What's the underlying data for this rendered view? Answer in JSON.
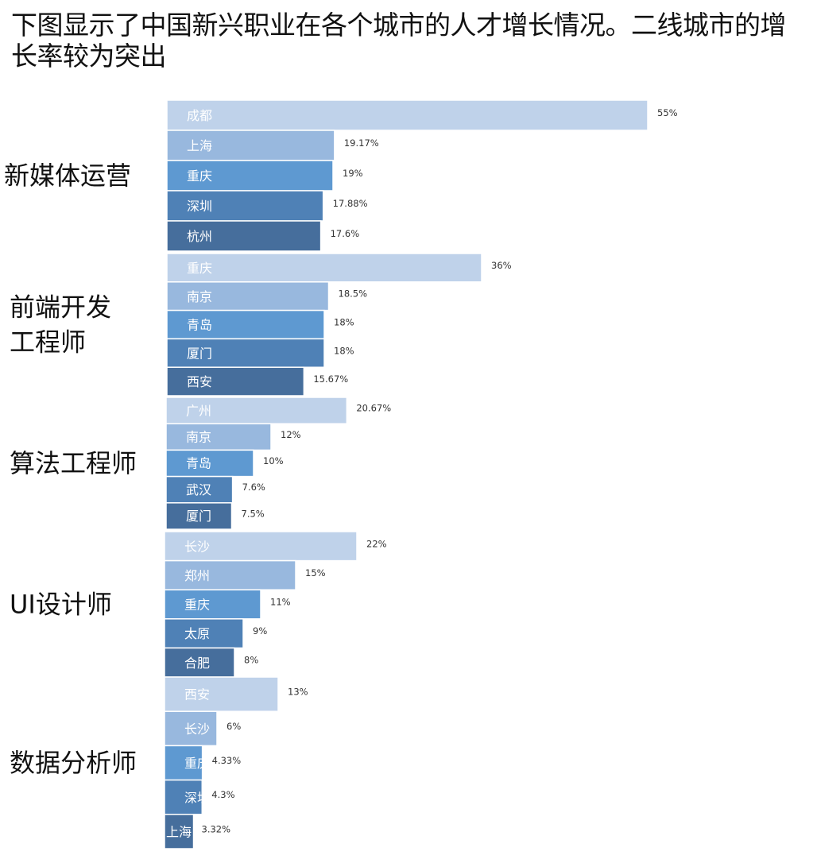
{
  "title": "下图显示了中国新兴职业在各个城市的人才增长情况。二线城市的增长率较为突出",
  "colors": [
    "#bfd2ea",
    "#98b8de",
    "#5e99d1",
    "#4f81b6",
    "#466e9c"
  ],
  "chart_data": {
    "type": "bar",
    "orientation": "horizontal",
    "unit": "%",
    "groups": [
      {
        "name": "新媒体运营",
        "cities": [
          "成都",
          "上海",
          "重庆",
          "深圳",
          "杭州"
        ],
        "values": [
          55,
          19.17,
          19,
          17.88,
          17.6
        ],
        "labels": [
          "55%",
          "19.17%",
          "19%",
          "17.88%",
          "17.6%"
        ]
      },
      {
        "name": "前端开发工程师",
        "name_lines": [
          "前端开发",
          "工程师"
        ],
        "cities": [
          "重庆",
          "南京",
          "青岛",
          "厦门",
          "西安"
        ],
        "values": [
          36,
          18.5,
          18,
          18,
          15.67
        ],
        "labels": [
          "36%",
          "18.5%",
          "18%",
          "18%",
          "15.67%"
        ]
      },
      {
        "name": "算法工程师",
        "cities": [
          "广州",
          "南京",
          "青岛",
          "武汉",
          "厦门"
        ],
        "values": [
          20.67,
          12,
          10,
          7.6,
          7.5
        ],
        "labels": [
          "20.67%",
          "12%",
          "10%",
          "7.6%",
          "7.5%"
        ]
      },
      {
        "name": "UI设计师",
        "cities": [
          "长沙",
          "郑州",
          "重庆",
          "太原",
          "合肥"
        ],
        "values": [
          22,
          15,
          11,
          9,
          8
        ],
        "labels": [
          "22%",
          "15%",
          "11%",
          "9%",
          "8%"
        ]
      },
      {
        "name": "数据分析师",
        "cities": [
          "西安",
          "长沙",
          "重庆",
          "深圳",
          "上海"
        ],
        "values": [
          13,
          6,
          4.33,
          4.3,
          3.32
        ],
        "labels": [
          "13%",
          "6%",
          "4.33%",
          "4.3%",
          "3.32%"
        ]
      }
    ]
  }
}
